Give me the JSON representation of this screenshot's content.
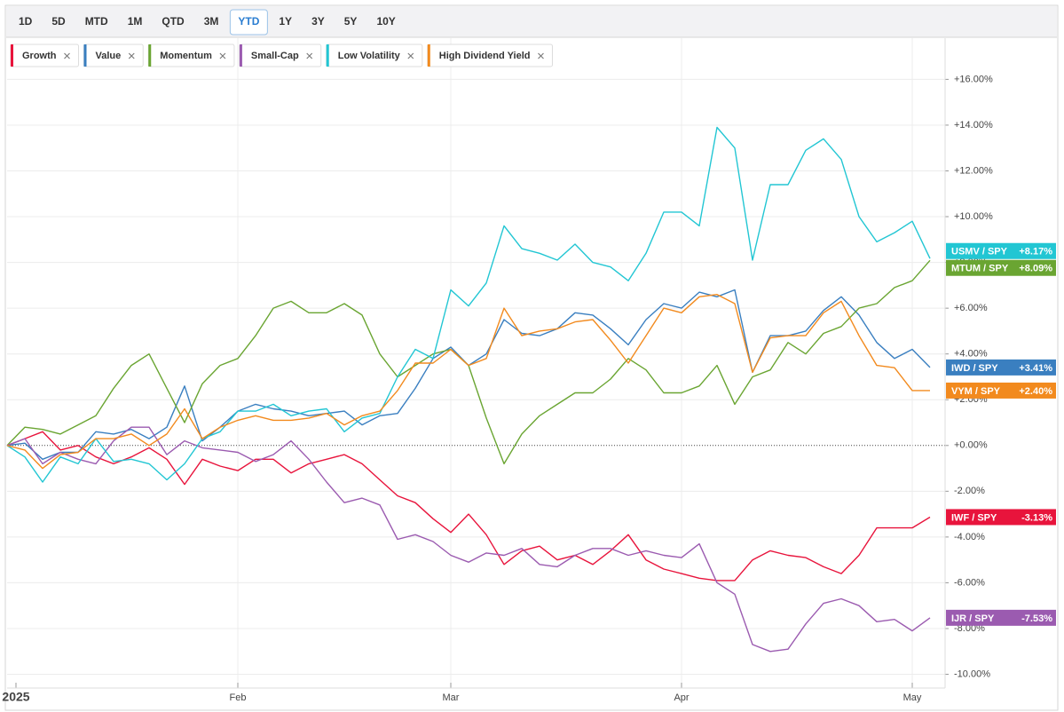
{
  "range_buttons": [
    "1D",
    "5D",
    "MTD",
    "1M",
    "QTD",
    "3M",
    "YTD",
    "1Y",
    "3Y",
    "5Y",
    "10Y"
  ],
  "active_range": "YTD",
  "chart_data": {
    "type": "line",
    "categories": [
      "2025",
      null,
      null,
      null,
      null,
      null,
      null,
      null,
      null,
      null,
      null,
      null,
      null,
      "Feb",
      null,
      null,
      null,
      null,
      null,
      null,
      null,
      null,
      null,
      null,
      null,
      "Mar",
      null,
      null,
      null,
      null,
      null,
      null,
      null,
      null,
      null,
      null,
      null,
      null,
      "Apr",
      null,
      null,
      null,
      null,
      null,
      null,
      null,
      null,
      null,
      null,
      null,
      null,
      "May",
      null
    ],
    "series": [
      {
        "name": "Growth",
        "ticker": "IWF / SPY",
        "end_label": "-3.13%",
        "color": "#e8143c",
        "values": [
          0,
          0.3,
          0.6,
          -0.2,
          0,
          -0.5,
          -0.8,
          -0.5,
          -0.1,
          -0.6,
          -1.7,
          -0.6,
          -0.9,
          -1.1,
          -0.6,
          -0.6,
          -1.2,
          -0.8,
          -0.6,
          -0.4,
          -0.8,
          -1.5,
          -2.2,
          -2.5,
          -3.2,
          -3.8,
          -3.0,
          -3.9,
          -5.2,
          -4.6,
          -4.4,
          -5.0,
          -4.8,
          -5.2,
          -4.6,
          -3.9,
          -5.0,
          -5.4,
          -5.6,
          -5.8,
          -5.9,
          -5.9,
          -5.0,
          -4.6,
          -4.8,
          -4.9,
          -5.3,
          -5.6,
          -4.8,
          -3.6,
          -3.6,
          -3.6,
          -3.13
        ]
      },
      {
        "name": "Value",
        "ticker": "IWD / SPY",
        "end_label": "+3.41%",
        "color": "#3a7fc0",
        "values": [
          0,
          0.1,
          -0.6,
          -0.3,
          -0.3,
          0.6,
          0.5,
          0.7,
          0.3,
          0.8,
          2.6,
          0.2,
          0.8,
          1.5,
          1.8,
          1.6,
          1.5,
          1.3,
          1.4,
          1.5,
          0.9,
          1.3,
          1.4,
          2.5,
          3.8,
          4.3,
          3.5,
          4.0,
          5.5,
          4.9,
          4.8,
          5.1,
          5.8,
          5.7,
          5.1,
          4.4,
          5.5,
          6.2,
          6.0,
          6.7,
          6.5,
          6.8,
          3.2,
          4.8,
          4.8,
          5.0,
          5.9,
          6.5,
          5.7,
          4.5,
          3.8,
          4.2,
          3.41
        ]
      },
      {
        "name": "Momentum",
        "ticker": "MTUM / SPY",
        "end_label": "+8.09%",
        "color": "#6aa532",
        "values": [
          0,
          0.8,
          0.7,
          0.5,
          0.9,
          1.3,
          2.5,
          3.5,
          4.0,
          2.5,
          1.0,
          2.7,
          3.5,
          3.8,
          4.8,
          6.0,
          6.3,
          5.8,
          5.8,
          6.2,
          5.7,
          4.0,
          3.0,
          3.5,
          4.0,
          4.2,
          3.5,
          1.2,
          -0.8,
          0.5,
          1.3,
          1.8,
          2.3,
          2.3,
          2.9,
          3.8,
          3.3,
          2.3,
          2.3,
          2.6,
          3.5,
          1.8,
          3.0,
          3.3,
          4.5,
          4.0,
          4.9,
          5.2,
          6.0,
          6.2,
          6.9,
          7.2,
          8.09
        ]
      },
      {
        "name": "Small-Cap",
        "ticker": "IJR / SPY",
        "end_label": "-7.53%",
        "color": "#9b5bb0",
        "values": [
          0,
          0.3,
          -0.8,
          -0.3,
          -0.6,
          -0.8,
          0.2,
          0.8,
          0.8,
          -0.4,
          0.2,
          -0.1,
          -0.2,
          -0.3,
          -0.7,
          -0.4,
          0.2,
          -0.6,
          -1.6,
          -2.5,
          -2.3,
          -2.6,
          -4.1,
          -3.9,
          -4.2,
          -4.8,
          -5.1,
          -4.7,
          -4.8,
          -4.5,
          -5.2,
          -5.3,
          -4.8,
          -4.5,
          -4.5,
          -4.8,
          -4.6,
          -4.8,
          -4.9,
          -4.3,
          -6.0,
          -6.5,
          -8.7,
          -9.0,
          -8.9,
          -7.8,
          -6.9,
          -6.7,
          -7.0,
          -7.7,
          -7.6,
          -8.1,
          -7.53
        ]
      },
      {
        "name": "Low Volatility",
        "ticker": "USMV / SPY",
        "end_label": "+8.17%",
        "color": "#22c6d3",
        "values": [
          0,
          -0.5,
          -1.6,
          -0.5,
          -0.8,
          0.3,
          -0.7,
          -0.6,
          -0.8,
          -1.5,
          -0.8,
          0.3,
          0.6,
          1.5,
          1.5,
          1.8,
          1.3,
          1.5,
          1.6,
          0.6,
          1.2,
          1.4,
          3.0,
          4.2,
          3.8,
          6.8,
          6.1,
          7.1,
          9.6,
          8.6,
          8.4,
          8.1,
          8.8,
          8.0,
          7.8,
          7.2,
          8.4,
          10.2,
          10.2,
          9.6,
          13.9,
          13.0,
          8.1,
          11.4,
          11.4,
          12.9,
          13.4,
          12.5,
          10.0,
          8.9,
          9.3,
          9.8,
          8.17
        ]
      },
      {
        "name": "High Dividend Yield",
        "ticker": "VYM / SPY",
        "end_label": "+2.40%",
        "color": "#f28a1e",
        "values": [
          0,
          -0.2,
          -1.0,
          -0.4,
          -0.3,
          0.3,
          0.3,
          0.5,
          0.0,
          0.5,
          1.6,
          0.3,
          0.8,
          1.1,
          1.3,
          1.1,
          1.1,
          1.2,
          1.4,
          0.9,
          1.3,
          1.5,
          2.4,
          3.6,
          3.6,
          4.2,
          3.5,
          3.8,
          6.0,
          4.8,
          5.0,
          5.1,
          5.4,
          5.5,
          4.6,
          3.6,
          4.8,
          6.0,
          5.8,
          6.5,
          6.6,
          6.2,
          3.2,
          4.7,
          4.8,
          4.8,
          5.8,
          6.3,
          4.8,
          3.5,
          3.4,
          2.4,
          2.4
        ]
      }
    ],
    "ylim": [
      -10.6,
      17.8
    ],
    "yticks": [
      {
        "value": 16,
        "label": "+16.00%"
      },
      {
        "value": 14,
        "label": "+14.00%"
      },
      {
        "value": 12,
        "label": "+12.00%"
      },
      {
        "value": 10,
        "label": "+10.00%"
      },
      {
        "value": 8,
        "label": "+8.00%"
      },
      {
        "value": 6,
        "label": "+6.00%"
      },
      {
        "value": 4,
        "label": "+4.00%"
      },
      {
        "value": 2,
        "label": "+2.00%"
      },
      {
        "value": 0,
        "label": "+0.00%"
      },
      {
        "value": -2,
        "label": "-2.00%"
      },
      {
        "value": -4,
        "label": "-4.00%"
      },
      {
        "value": -6,
        "label": "-6.00%"
      },
      {
        "value": -8,
        "label": "-8.00%"
      },
      {
        "value": -10,
        "label": "-10.00%"
      }
    ],
    "grid": true
  }
}
